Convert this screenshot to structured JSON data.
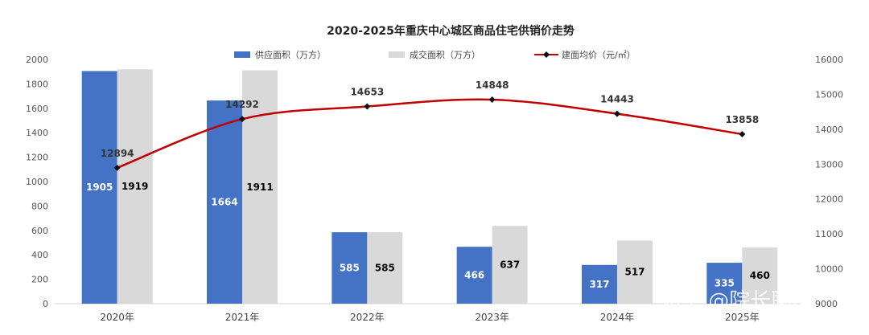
{
  "chart_data": {
    "type": "bar",
    "title": "2020-2025年重庆中心城区商品住宅供销价走势",
    "categories": [
      "2020年",
      "2021年",
      "2022年",
      "2023年",
      "2024年",
      "2025年"
    ],
    "series": [
      {
        "name": "供应面积（万方）",
        "type": "bar",
        "axis": "left",
        "color": "#4472C4",
        "label_color": "#ffffff",
        "values": [
          1905,
          1664,
          585,
          466,
          317,
          335
        ]
      },
      {
        "name": "成交面积（万方）",
        "type": "bar",
        "axis": "left",
        "color": "#D9D9D9",
        "label_color": "#000000",
        "values": [
          1919,
          1911,
          585,
          637,
          517,
          460
        ]
      },
      {
        "name": "建面均价（元/㎡）",
        "type": "line",
        "axis": "right",
        "color": "#C00000",
        "marker_color": "#111111",
        "values": [
          12894,
          14292,
          14653,
          14848,
          14443,
          13858
        ]
      }
    ],
    "y_left": {
      "min": 0,
      "max": 2000,
      "step": 200
    },
    "y_right": {
      "min": 9000,
      "max": 16000,
      "step": 1000,
      "visible_ticks": [
        9000,
        10000,
        11000,
        12000,
        13000,
        14000,
        15000,
        16000
      ]
    },
    "grid": false,
    "legend_position": "top"
  },
  "watermark": "知乎 @院长聊房"
}
